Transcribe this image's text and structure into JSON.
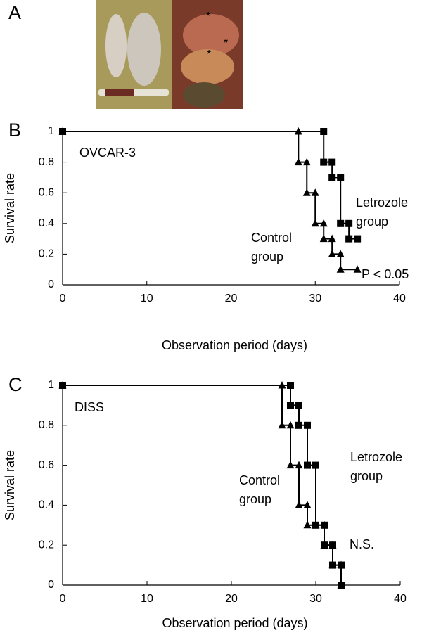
{
  "panel_label": "A",
  "photo_marks": [
    "*",
    "*",
    "*"
  ],
  "chart_data": [
    {
      "type": "line",
      "panel": "B",
      "xlabel": "Observation period (days)",
      "ylabel": "Survival rate",
      "xlim": [
        0,
        40
      ],
      "ylim": [
        0,
        1
      ],
      "xticks": [
        0,
        10,
        20,
        30,
        40
      ],
      "yticks": [
        0,
        0.2,
        0.4,
        0.6,
        0.8,
        1
      ],
      "annotations": [
        [
          "OVCAR-3"
        ],
        [
          "Control",
          "group"
        ],
        [
          "Letrozole",
          "group"
        ],
        [
          "P < 0.05"
        ]
      ],
      "series": [
        {
          "marker": "triangle",
          "color": "#000000",
          "x": [
            0,
            28,
            28,
            29,
            29,
            30,
            30,
            31,
            31,
            32,
            32,
            33,
            33,
            35
          ],
          "values": [
            1,
            1,
            0.8,
            0.8,
            0.6,
            0.6,
            0.4,
            0.4,
            0.3,
            0.3,
            0.2,
            0.2,
            0.1,
            0.1
          ]
        },
        {
          "marker": "square",
          "color": "#000000",
          "x": [
            0,
            31,
            31,
            32,
            32,
            33,
            33,
            34,
            34,
            35
          ],
          "values": [
            1,
            1,
            0.8,
            0.8,
            0.7,
            0.7,
            0.4,
            0.4,
            0.3,
            0.3
          ]
        }
      ]
    },
    {
      "type": "line",
      "panel": "C",
      "xlabel": "Observation period (days)",
      "ylabel": "Survival rate",
      "xlim": [
        0,
        40
      ],
      "ylim": [
        0,
        1
      ],
      "xticks": [
        0,
        10,
        20,
        30,
        40
      ],
      "yticks": [
        0,
        0.2,
        0.4,
        0.6,
        0.8,
        1
      ],
      "annotations": [
        [
          "DISS"
        ],
        [
          "Control",
          "group"
        ],
        [
          "Letrozole",
          "group"
        ],
        [
          "N.S."
        ]
      ],
      "series": [
        {
          "marker": "triangle",
          "color": "#000000",
          "x": [
            0,
            26,
            26,
            27,
            27,
            28,
            28,
            29,
            29,
            30,
            30,
            31,
            31,
            32,
            32,
            33,
            33
          ],
          "values": [
            1,
            1,
            0.8,
            0.8,
            0.6,
            0.6,
            0.4,
            0.4,
            0.3,
            0.3,
            0.3,
            0.3,
            0.2,
            0.2,
            0.1,
            0.1,
            0
          ]
        },
        {
          "marker": "square",
          "color": "#000000",
          "x": [
            0,
            27,
            27,
            28,
            28,
            29,
            29,
            30,
            30,
            31,
            31,
            32,
            32,
            33,
            33
          ],
          "values": [
            1,
            1,
            0.9,
            0.9,
            0.8,
            0.8,
            0.6,
            0.6,
            0.3,
            0.3,
            0.2,
            0.2,
            0.1,
            0.1,
            0
          ]
        }
      ]
    }
  ]
}
